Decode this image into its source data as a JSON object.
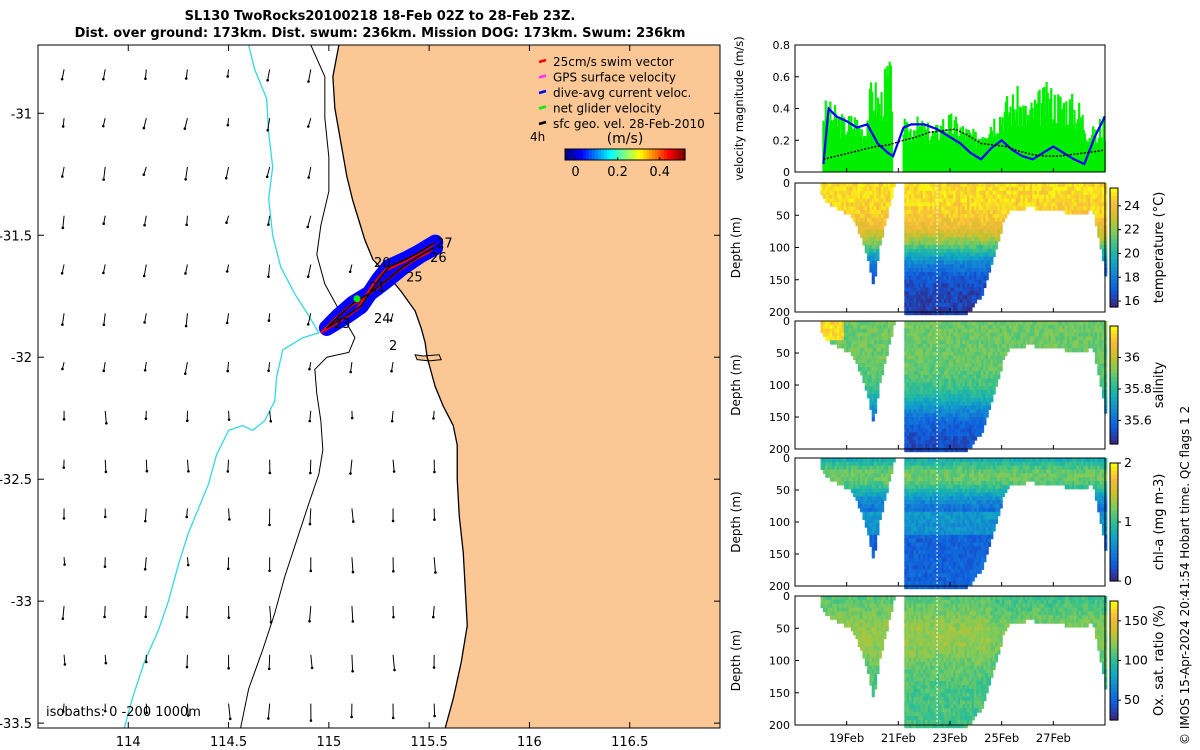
{
  "title": {
    "line1": "SL130 TwoRocks20100218 18-Feb 02Z to 28-Feb 23Z.",
    "line2": "Dist. over ground: 173km. Dist. swum: 236km. Mission DOG: 173km. Swum: 236km"
  },
  "colors": {
    "land": "#fac795",
    "coast": "#000000",
    "isobath_200": "#000000",
    "isobath_1000": "#33d8e0",
    "swim": "#ff0000",
    "gps": "#ff33ff",
    "dive": "#0000ff",
    "net": "#00ee00",
    "geo": "#000000"
  },
  "chart_data": [
    {
      "id": "map",
      "type": "scatter",
      "xlim": [
        113.55,
        116.95
      ],
      "ylim": [
        -33.52,
        -30.72
      ],
      "x_ticks": [
        114,
        114.5,
        115,
        115.5,
        116,
        116.5
      ],
      "x_tick_labels": [
        "114",
        "114.5",
        "115",
        "115.5",
        "116",
        "116.5"
      ],
      "y_ticks": [
        -31,
        -31.5,
        -32,
        -32.5,
        -33,
        -33.5
      ],
      "y_tick_labels": [
        "-31",
        "-31.5",
        "-32",
        "-32.5",
        "-33",
        "-33.5"
      ],
      "legend": {
        "position": "top-right",
        "items": [
          {
            "key": "swim",
            "label": "25cm/s swim vector"
          },
          {
            "key": "gps",
            "label": "GPS surface velocity"
          },
          {
            "key": "dive",
            "label": "dive-avg current veloc."
          },
          {
            "key": "net",
            "label": "net glider velocity"
          },
          {
            "key": "geo",
            "label": "sfc geo. vel. 28-Feb-2010"
          }
        ]
      },
      "colorbar": {
        "label": "(m/s)",
        "ticks": [
          0,
          0.2,
          0.4
        ],
        "tick_labels": [
          "0",
          "0.2",
          "0.4"
        ],
        "range": [
          -0.05,
          0.52
        ],
        "marker": "4h"
      },
      "isobath_label": "isobaths: 0  -200  1000m",
      "day_labels": [
        {
          "text": "27",
          "lon": 115.535,
          "lat": -31.55
        },
        {
          "text": "26",
          "lon": 115.505,
          "lat": -31.61
        },
        {
          "text": "25",
          "lon": 115.385,
          "lat": -31.69
        },
        {
          "text": "20",
          "lon": 115.225,
          "lat": -31.63
        },
        {
          "text": "21",
          "lon": 115.2,
          "lat": -31.73
        },
        {
          "text": "24",
          "lon": 115.225,
          "lat": -31.86
        },
        {
          "text": "23",
          "lon": 115.025,
          "lat": -31.88
        },
        {
          "text": "2",
          "lon": 115.3,
          "lat": -31.97
        }
      ],
      "track": [
        [
          115.53,
          -31.53
        ],
        [
          115.45,
          -31.57
        ],
        [
          115.38,
          -31.6
        ],
        [
          115.3,
          -31.63
        ],
        [
          115.25,
          -31.68
        ],
        [
          115.21,
          -31.73
        ],
        [
          115.16,
          -31.79
        ],
        [
          115.09,
          -31.83
        ],
        [
          115.03,
          -31.86
        ],
        [
          114.99,
          -31.88
        ],
        [
          115.05,
          -31.83
        ],
        [
          115.12,
          -31.78
        ],
        [
          115.2,
          -31.74
        ],
        [
          115.28,
          -31.69
        ],
        [
          115.37,
          -31.63
        ],
        [
          115.46,
          -31.58
        ],
        [
          115.53,
          -31.55
        ]
      ],
      "coast": [
        [
          115.05,
          -30.72
        ],
        [
          115.02,
          -30.85
        ],
        [
          115.03,
          -30.98
        ],
        [
          115.06,
          -31.12
        ],
        [
          115.09,
          -31.26
        ],
        [
          115.12,
          -31.36
        ],
        [
          115.15,
          -31.44
        ],
        [
          115.18,
          -31.52
        ],
        [
          115.22,
          -31.6
        ],
        [
          115.29,
          -31.66
        ],
        [
          115.36,
          -31.73
        ],
        [
          115.43,
          -31.81
        ],
        [
          115.46,
          -31.88
        ],
        [
          115.48,
          -31.94
        ],
        [
          115.49,
          -32.0
        ],
        [
          115.51,
          -32.06
        ],
        [
          115.53,
          -32.12
        ],
        [
          115.57,
          -32.2
        ],
        [
          115.62,
          -32.28
        ],
        [
          115.64,
          -32.36
        ],
        [
          115.64,
          -32.5
        ],
        [
          115.65,
          -32.65
        ],
        [
          115.67,
          -32.8
        ],
        [
          115.68,
          -32.95
        ],
        [
          115.69,
          -33.1
        ],
        [
          115.66,
          -33.25
        ],
        [
          115.62,
          -33.4
        ],
        [
          115.58,
          -33.52
        ]
      ],
      "island": [
        [
          115.43,
          -31.99
        ],
        [
          115.47,
          -31.995
        ],
        [
          115.55,
          -31.99
        ],
        [
          115.56,
          -32.01
        ],
        [
          115.5,
          -32.015
        ],
        [
          115.44,
          -32.01
        ]
      ],
      "isobath_200": [
        [
          114.91,
          -30.72
        ],
        [
          114.98,
          -30.85
        ],
        [
          114.98,
          -31.02
        ],
        [
          115.0,
          -31.18
        ],
        [
          115.0,
          -31.32
        ],
        [
          114.96,
          -31.46
        ],
        [
          114.94,
          -31.58
        ],
        [
          114.98,
          -31.7
        ],
        [
          115.06,
          -31.82
        ],
        [
          115.13,
          -31.92
        ],
        [
          115.1,
          -31.98
        ],
        [
          114.99,
          -32.0
        ],
        [
          114.93,
          -32.05
        ],
        [
          114.94,
          -32.15
        ],
        [
          114.96,
          -32.26
        ],
        [
          114.97,
          -32.38
        ],
        [
          114.95,
          -32.48
        ],
        [
          114.9,
          -32.6
        ],
        [
          114.84,
          -32.75
        ],
        [
          114.78,
          -32.9
        ],
        [
          114.73,
          -33.05
        ],
        [
          114.67,
          -33.2
        ],
        [
          114.6,
          -33.36
        ],
        [
          114.56,
          -33.52
        ]
      ],
      "isobath_1000": [
        [
          114.6,
          -30.72
        ],
        [
          114.63,
          -30.82
        ],
        [
          114.69,
          -30.94
        ],
        [
          114.7,
          -31.08
        ],
        [
          114.72,
          -31.22
        ],
        [
          114.7,
          -31.35
        ],
        [
          114.72,
          -31.5
        ],
        [
          114.76,
          -31.63
        ],
        [
          114.83,
          -31.74
        ],
        [
          114.9,
          -31.83
        ],
        [
          114.95,
          -31.9
        ],
        [
          114.87,
          -31.92
        ],
        [
          114.77,
          -31.97
        ],
        [
          114.74,
          -32.08
        ],
        [
          114.73,
          -32.18
        ],
        [
          114.68,
          -32.26
        ],
        [
          114.62,
          -32.3
        ],
        [
          114.57,
          -32.28
        ],
        [
          114.5,
          -32.3
        ],
        [
          114.44,
          -32.4
        ],
        [
          114.4,
          -32.52
        ],
        [
          114.35,
          -32.62
        ],
        [
          114.3,
          -32.72
        ],
        [
          114.25,
          -32.85
        ],
        [
          114.2,
          -33.0
        ],
        [
          114.15,
          -33.12
        ],
        [
          114.08,
          -33.25
        ],
        [
          114.02,
          -33.4
        ],
        [
          113.98,
          -33.52
        ]
      ]
    },
    {
      "id": "velocity",
      "type": "line",
      "ylabel": "velocity magnitude (m/s)",
      "ylim": [
        0,
        0.8
      ],
      "y_ticks": [
        0,
        0.2,
        0.4,
        0.6,
        0.8
      ],
      "y_tick_labels": [
        "0",
        "0.2",
        "0.4",
        "0.6",
        "0.8"
      ],
      "xlim": [
        17,
        29
      ],
      "gap": [
        20.8,
        21.2
      ],
      "series": [
        {
          "name": "net glider velocity",
          "color_key": "net",
          "x": [
            18.1,
            18.5,
            18.9,
            19.3,
            19.7,
            20.0,
            20.3,
            20.6,
            21.3,
            21.6,
            22.0,
            22.4,
            22.8,
            23.2,
            23.6,
            24.0,
            24.4,
            24.8,
            25.2,
            25.6,
            26.0,
            26.4,
            26.8,
            27.2,
            27.6,
            28.0,
            28.4,
            28.8
          ],
          "values": [
            0.45,
            0.42,
            0.35,
            0.38,
            0.3,
            0.62,
            0.5,
            0.72,
            0.3,
            0.35,
            0.32,
            0.28,
            0.38,
            0.35,
            0.3,
            0.25,
            0.35,
            0.4,
            0.48,
            0.52,
            0.42,
            0.5,
            0.55,
            0.52,
            0.5,
            0.45,
            0.3,
            0.25
          ]
        },
        {
          "name": "dive-avg current veloc.",
          "color_key": "dive",
          "x": [
            18.1,
            18.3,
            18.6,
            19.0,
            19.4,
            19.8,
            20.2,
            20.6,
            20.8,
            21.2,
            21.5,
            22.0,
            22.5,
            23.0,
            23.4,
            23.8,
            24.2,
            24.6,
            25.0,
            25.4,
            25.8,
            26.2,
            26.6,
            27.0,
            27.4,
            27.8,
            28.2,
            28.6,
            29.0
          ],
          "values": [
            0.05,
            0.4,
            0.35,
            0.32,
            0.28,
            0.3,
            0.18,
            0.12,
            0.1,
            0.28,
            0.3,
            0.3,
            0.27,
            0.22,
            0.18,
            0.12,
            0.08,
            0.15,
            0.2,
            0.14,
            0.1,
            0.08,
            0.12,
            0.16,
            0.12,
            0.08,
            0.05,
            0.22,
            0.35
          ]
        },
        {
          "name": "sfc geo. vel.",
          "color_key": "geo",
          "x": [
            18.1,
            18.6,
            19.1,
            19.6,
            20.1,
            20.6,
            21.2,
            21.7,
            22.2,
            22.7,
            23.2,
            23.7,
            24.2,
            24.7,
            25.2,
            25.7,
            26.2,
            26.7,
            27.2,
            27.7,
            28.2,
            28.7,
            29.0
          ],
          "values": [
            0.08,
            0.1,
            0.12,
            0.14,
            0.16,
            0.17,
            0.2,
            0.22,
            0.25,
            0.26,
            0.27,
            0.23,
            0.18,
            0.17,
            0.16,
            0.13,
            0.11,
            0.1,
            0.1,
            0.11,
            0.12,
            0.13,
            0.14
          ]
        }
      ]
    },
    {
      "id": "temperature",
      "type": "heatmap",
      "ylabel": "Depth (m)",
      "clabel": "temperature (°C)",
      "clim": [
        15.5,
        25.5
      ],
      "c_ticks": [
        16,
        18,
        20,
        22,
        24
      ],
      "c_tick_labels": [
        "16",
        "18",
        "20",
        "22",
        "24"
      ],
      "surface": 25,
      "deep": 16,
      "thermocline": 100
    },
    {
      "id": "salinity",
      "type": "heatmap",
      "ylabel": "Depth (m)",
      "clabel": "salinity",
      "clim": [
        35.45,
        36.2
      ],
      "c_ticks": [
        35.6,
        35.8,
        36
      ],
      "c_tick_labels": [
        "35.6",
        "35.8",
        "36"
      ],
      "surface": 35.9,
      "deep": 35.5,
      "thermocline": 130
    },
    {
      "id": "chla",
      "type": "heatmap",
      "ylabel": "Depth (m)",
      "clabel": "chl-a (mg m-3)",
      "clim": [
        0,
        2
      ],
      "c_ticks": [
        0,
        1,
        2
      ],
      "c_tick_labels": [
        "0",
        "1",
        "2"
      ],
      "surface": 0.9,
      "deep": 0.3,
      "thermocline": 90
    },
    {
      "id": "oxygen",
      "type": "heatmap",
      "ylabel": "Depth (m)",
      "clabel": "Ox. sat. ratio (%)",
      "clim": [
        25,
        175
      ],
      "c_ticks": [
        50,
        100,
        150
      ],
      "c_tick_labels": [
        "50",
        "100",
        "150"
      ],
      "surface": 118,
      "deep": 100,
      "thermocline": 120
    }
  ],
  "section_axes": {
    "depth_ticks": [
      0,
      50,
      100,
      150,
      200
    ],
    "depth_tick_labels": [
      "0",
      "50",
      "100",
      "150",
      "200"
    ],
    "date_ticks": [
      19,
      21,
      23,
      25,
      27
    ],
    "date_tick_labels": [
      "19Feb",
      "21Feb",
      "23Feb",
      "25Feb",
      "27Feb"
    ],
    "bottom_profile": [
      [
        17.9,
        0
      ],
      [
        18.0,
        20
      ],
      [
        18.3,
        30
      ],
      [
        18.8,
        40
      ],
      [
        19.2,
        50
      ],
      [
        19.5,
        80
      ],
      [
        19.8,
        120
      ],
      [
        20.0,
        160
      ],
      [
        20.2,
        100
      ],
      [
        20.5,
        50
      ],
      [
        20.8,
        0
      ]
    ],
    "bottom_profile2": [
      [
        21.2,
        0
      ],
      [
        21.2,
        200
      ],
      [
        23.6,
        200
      ],
      [
        24.2,
        170
      ],
      [
        24.6,
        120
      ],
      [
        25.0,
        60
      ],
      [
        25.3,
        40
      ],
      [
        26.0,
        35
      ],
      [
        27.0,
        40
      ],
      [
        28.0,
        45
      ],
      [
        28.5,
        40
      ],
      [
        28.8,
        100
      ],
      [
        29.0,
        150
      ]
    ]
  },
  "footer": {
    "credit": "© IMOS 15-Apr-2024 20:41:54 Hobart time. QC flags 1  2"
  }
}
